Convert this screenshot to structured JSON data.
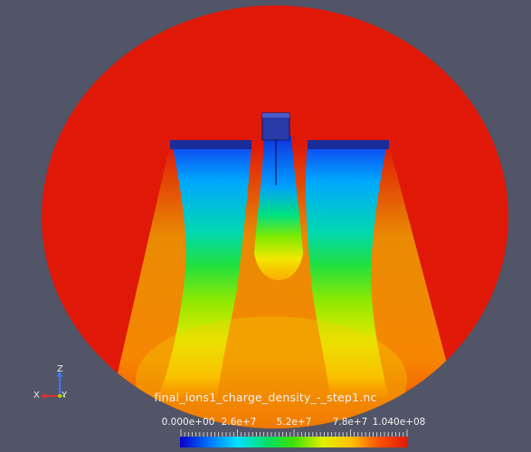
{
  "viewport": {
    "background_color": "#525467",
    "disc_color": "#e01808"
  },
  "dataset": {
    "filename": "final_ions1_charge_density_-_step1.nc"
  },
  "color_legend": {
    "tick_labels": [
      "0.000e+00",
      "2.6e+7",
      "5.2e+7",
      "7.8e+7",
      "1.040e+08"
    ],
    "colormap": [
      "#0a00c8",
      "#0070ff",
      "#00e0ff",
      "#00e070",
      "#40e000",
      "#e0f000",
      "#ffc000",
      "#ff5000",
      "#e01808"
    ]
  },
  "orientation_axes": {
    "labels": [
      "Z",
      "X",
      "Y"
    ],
    "colors": {
      "z": "#3c78ff",
      "x": "#e03030",
      "y": "#40c040"
    }
  }
}
